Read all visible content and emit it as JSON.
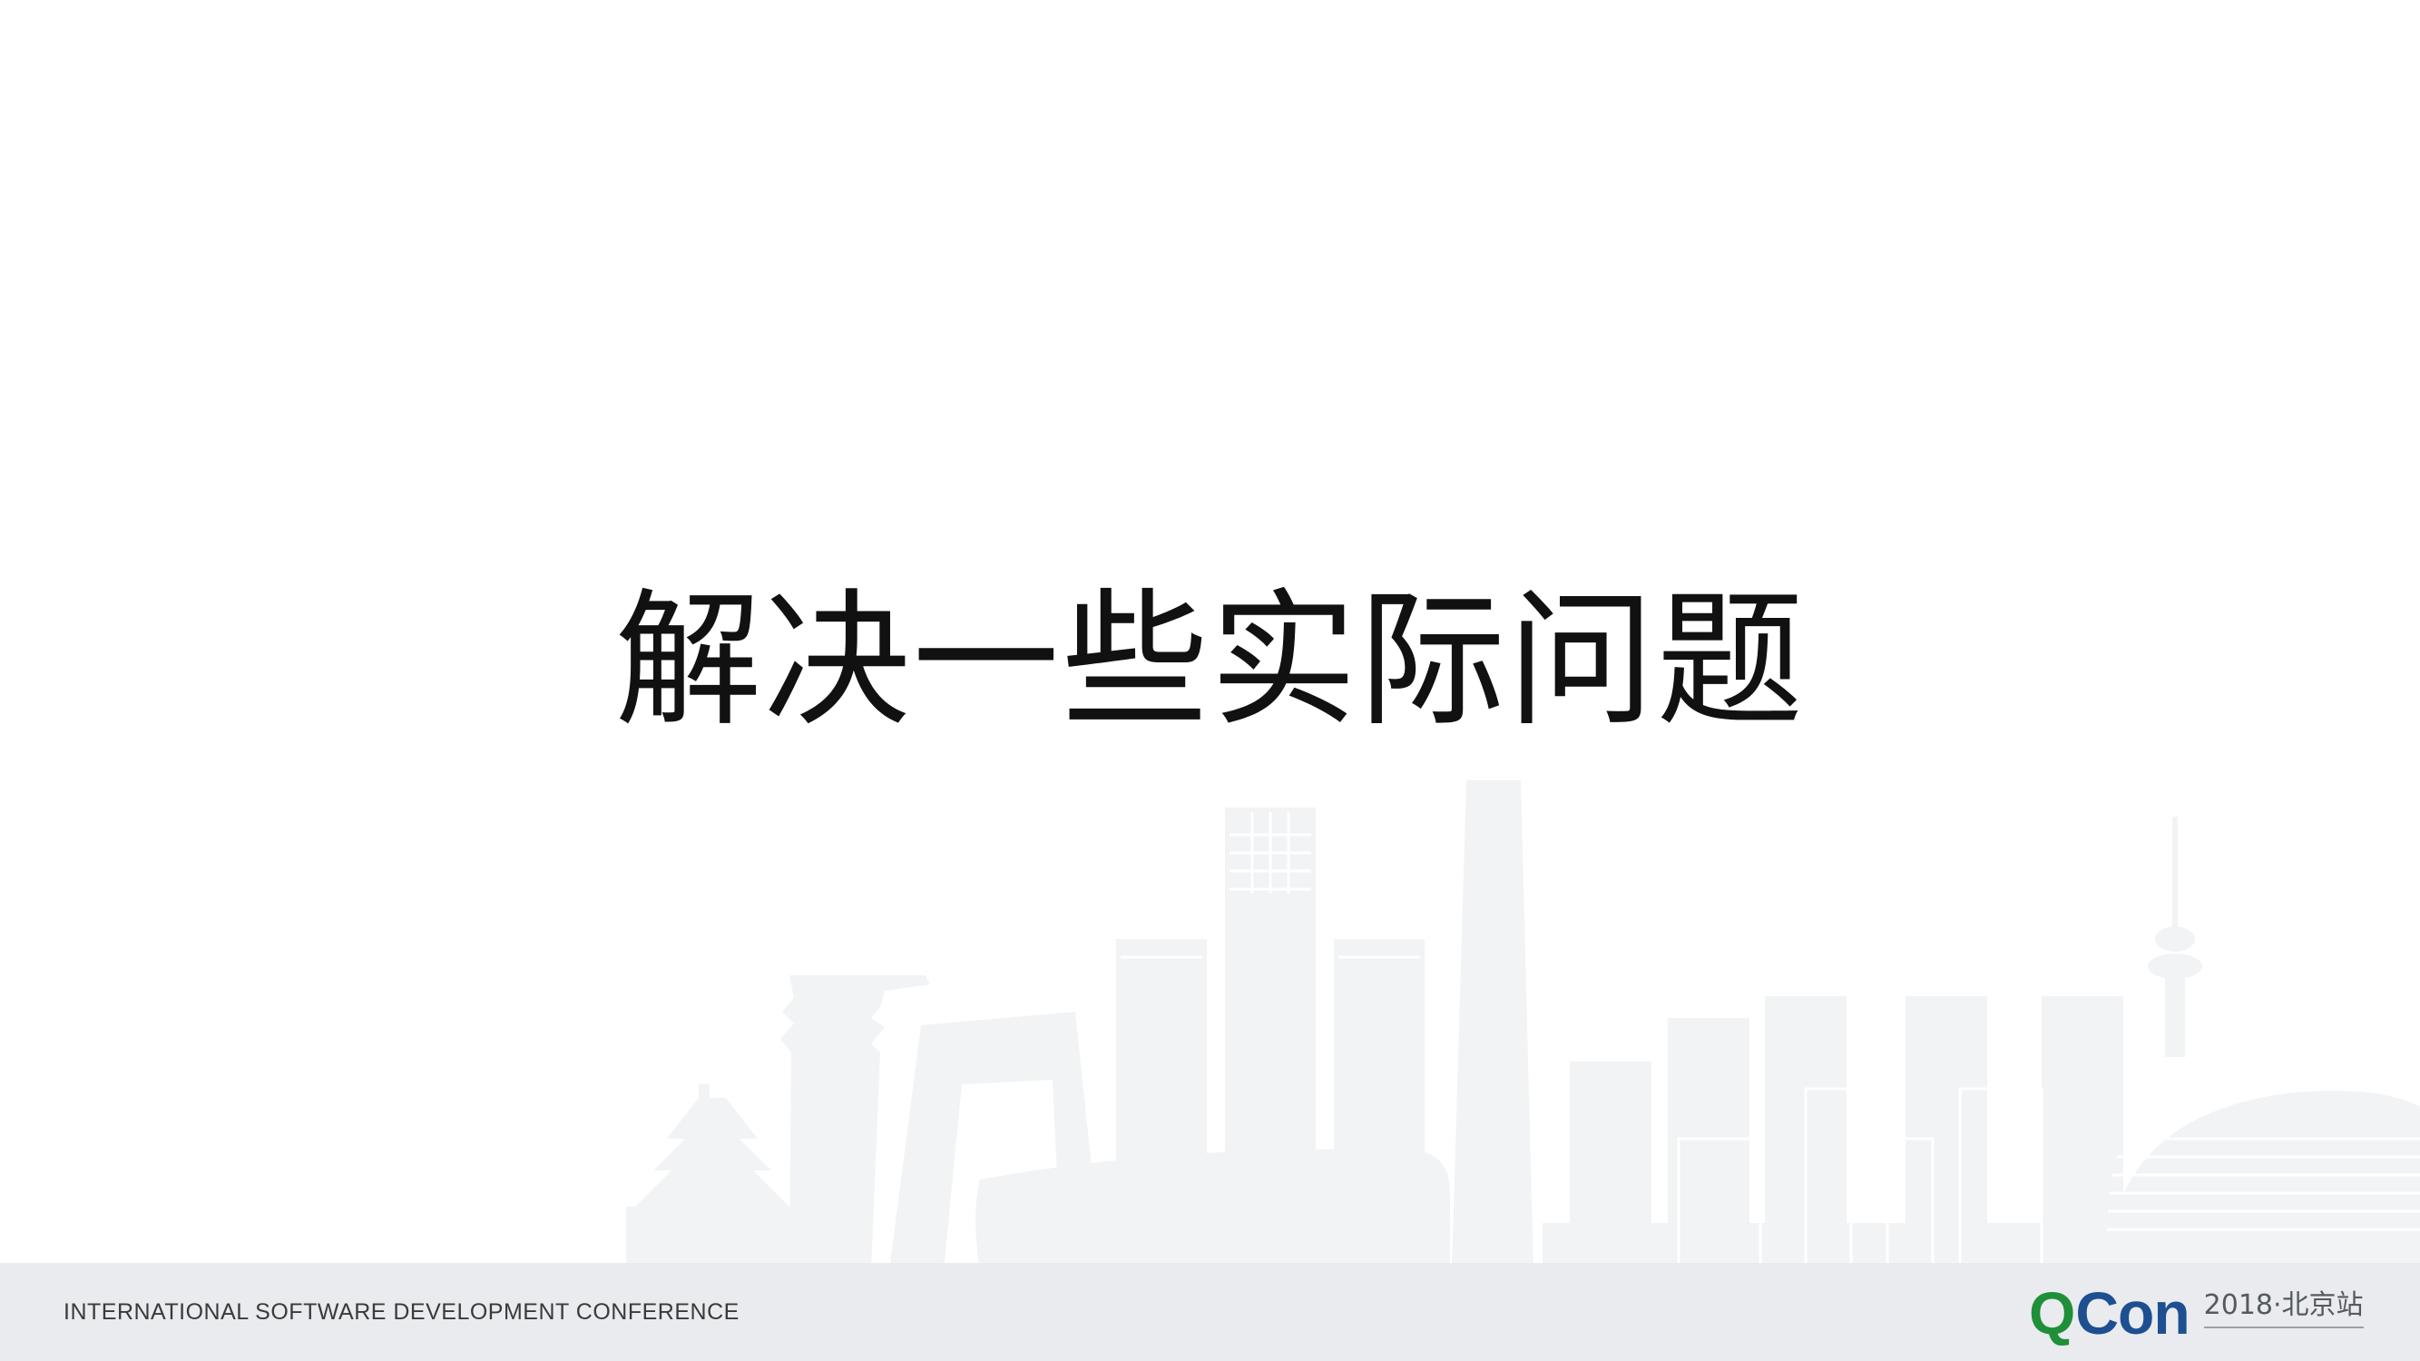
{
  "slide": {
    "title": "解决一些实际问题"
  },
  "footer": {
    "conference_name": "INTERNATIONAL SOFTWARE DEVELOPMENT CONFERENCE",
    "logo_q": "Q",
    "logo_con": "Con",
    "edition": "2018·北京站"
  },
  "colors": {
    "background": "#ffffff",
    "footer_bg": "#e9ebee",
    "skyline": "#f2f3f5",
    "logo_green": "#1f8f3a",
    "logo_blue": "#1d4f91",
    "title_text": "#111111"
  }
}
